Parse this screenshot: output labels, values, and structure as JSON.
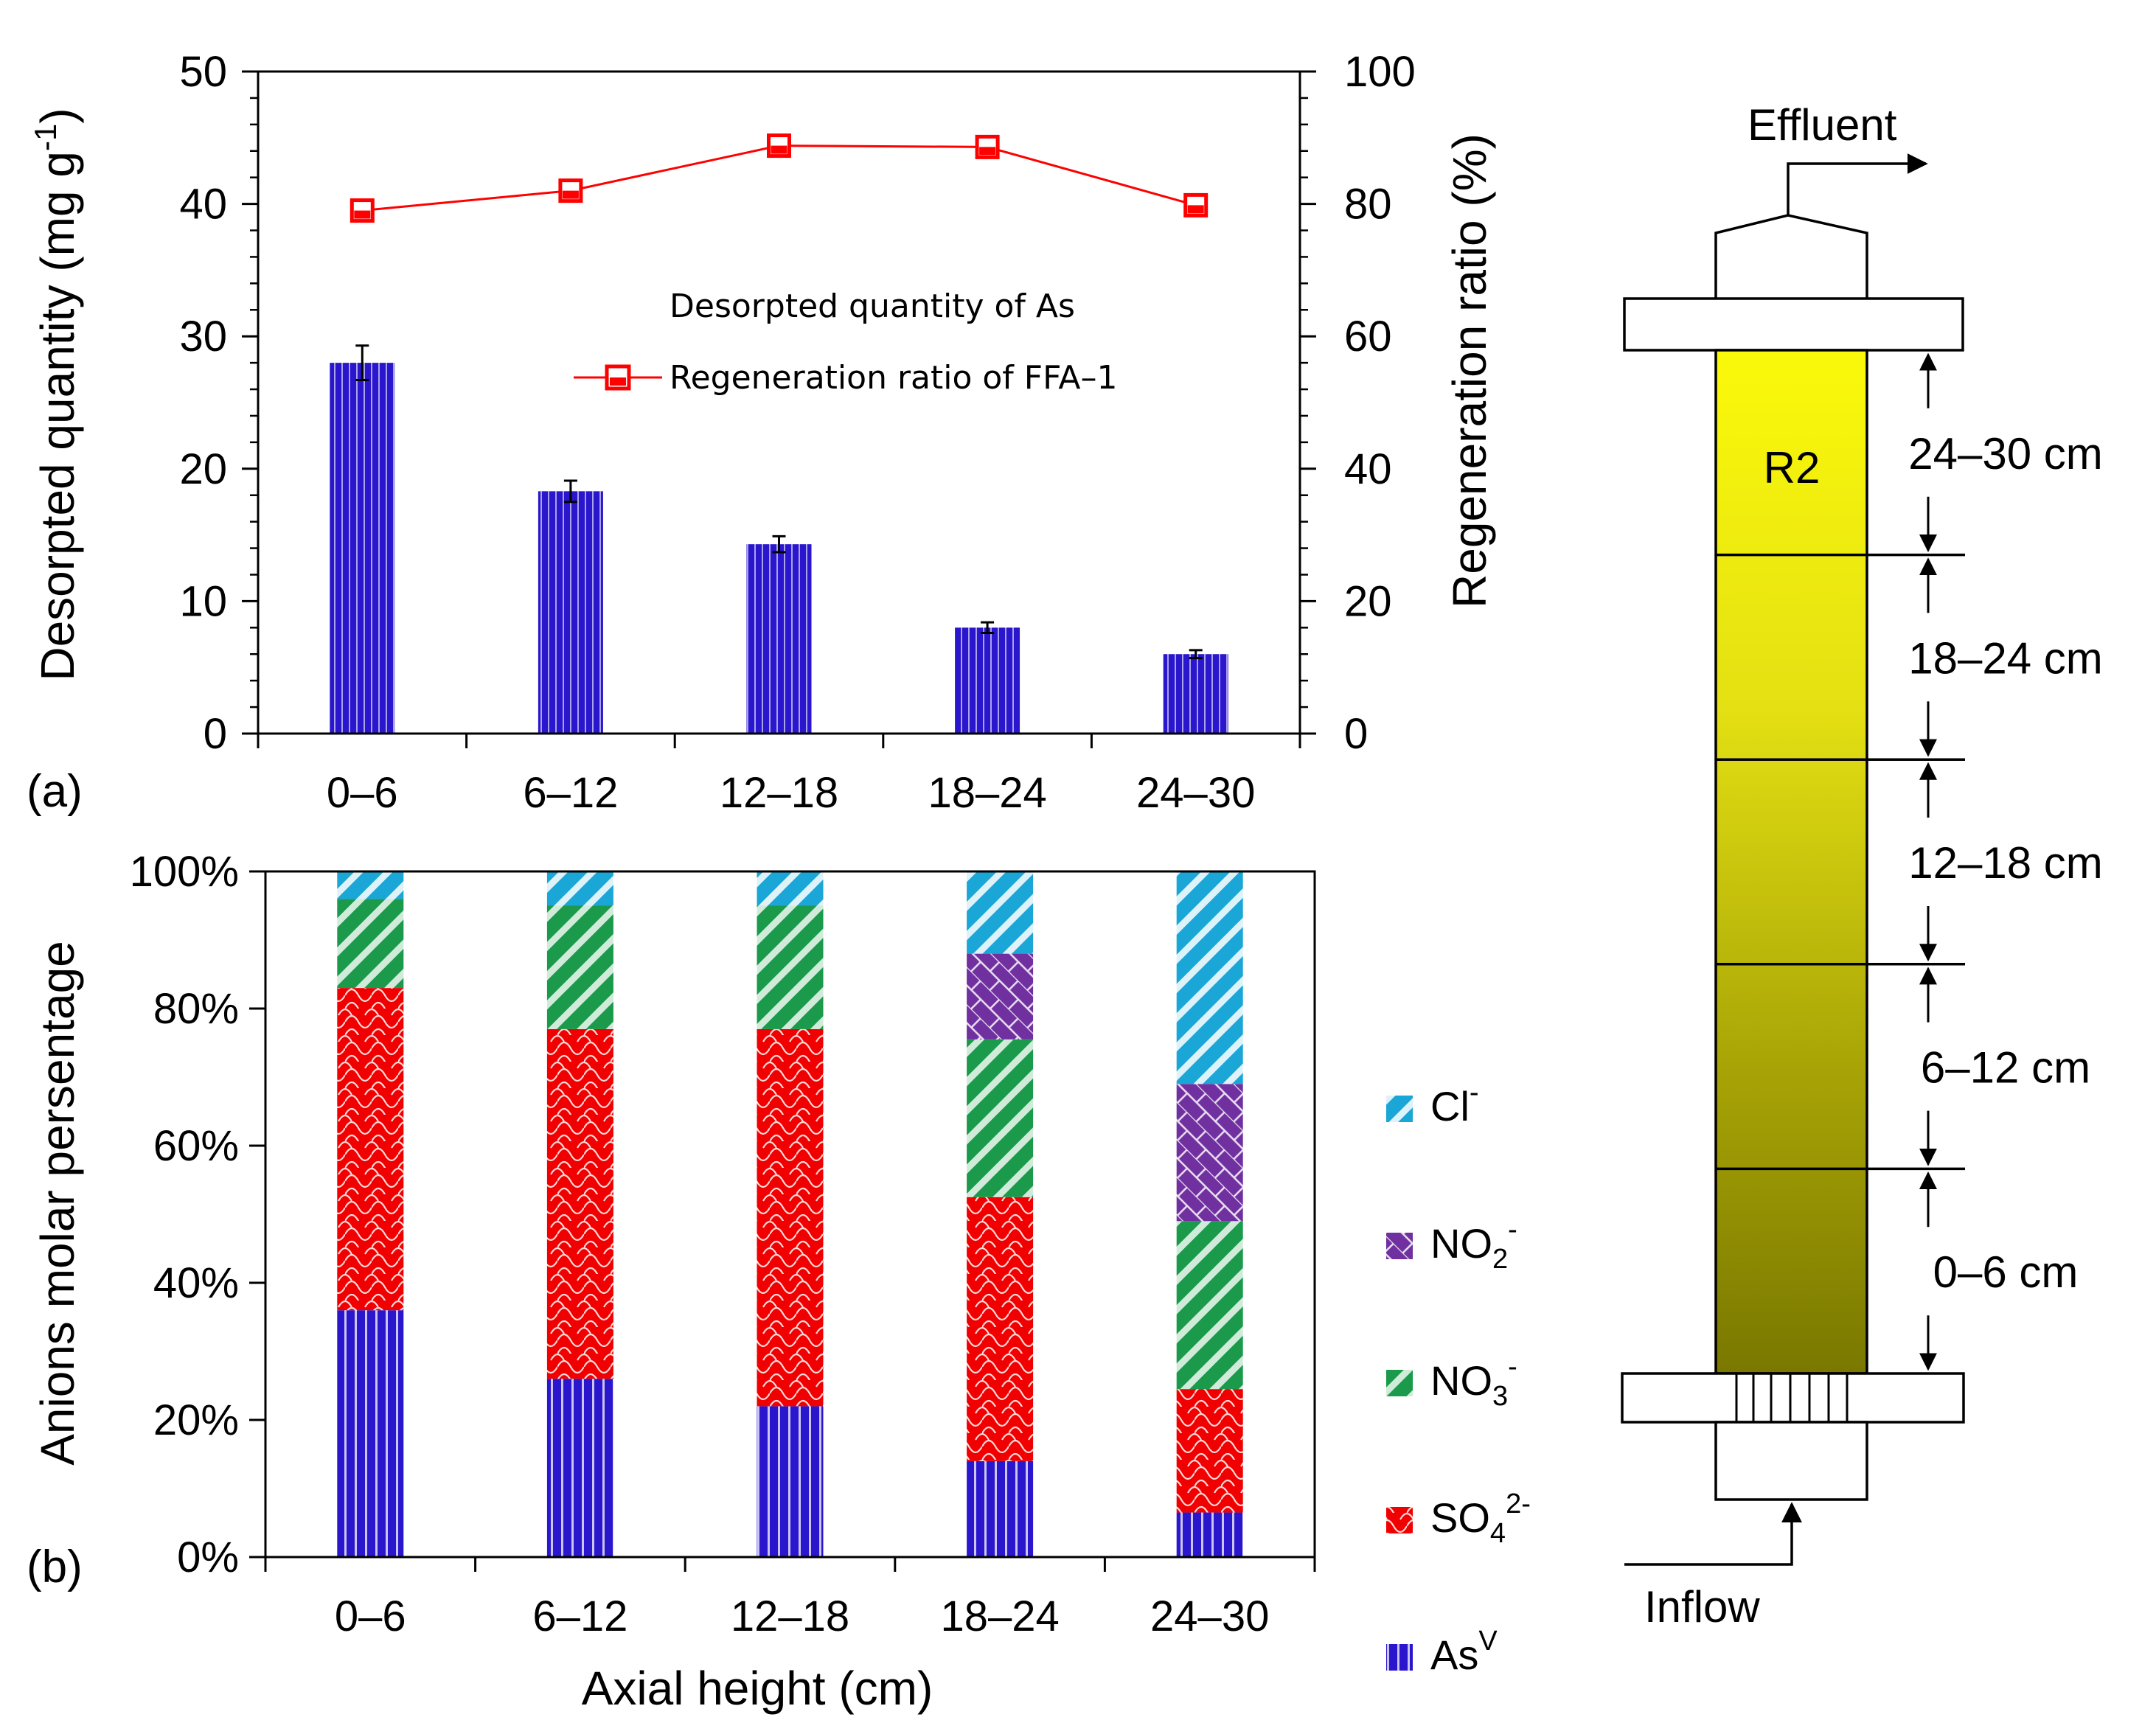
{
  "chart_data": [
    {
      "id": "a",
      "type": "bar",
      "panel_label": "(a)",
      "categories": [
        "0–6",
        "6–12",
        "12–18",
        "18–24",
        "24–30"
      ],
      "series": [
        {
          "name": "Desorpted quantity of As",
          "axis": "left",
          "values": [
            28.0,
            18.3,
            14.3,
            8.0,
            6.0
          ],
          "errors": [
            1.3,
            0.8,
            0.6,
            0.4,
            0.3
          ],
          "color": "#2a16cc"
        },
        {
          "name": "Regeneration ratio of FFA–1",
          "axis": "right",
          "type": "line",
          "values": [
            79,
            82,
            88.8,
            88.6,
            79.8
          ],
          "color": "#ff0000"
        }
      ],
      "ylabel": "Desorpted quantity (mg g",
      "ylabel_sup": "-1",
      "ylabel_close": ")",
      "y2label": "Regeneration ratio (%)",
      "ylim": [
        0,
        50
      ],
      "y2lim": [
        0,
        100
      ],
      "yticks": [
        "0",
        "10",
        "20",
        "30",
        "40",
        "50"
      ],
      "y2ticks": [
        "0",
        "20",
        "40",
        "60",
        "80",
        "100"
      ]
    },
    {
      "id": "b",
      "type": "bar",
      "stacked": true,
      "panel_label": "(b)",
      "categories": [
        "0–6",
        "6–12",
        "12–18",
        "18–24",
        "24–30"
      ],
      "xlabel": "Axial height (cm)",
      "ylabel": "Anions molar persentage",
      "ylim": [
        0,
        100
      ],
      "yticks": [
        "0%",
        "20%",
        "40%",
        "60%",
        "80%",
        "100%"
      ],
      "series": [
        {
          "name": "As",
          "sup": "V",
          "values": [
            36,
            26,
            22,
            14,
            6.5
          ],
          "color": "#2a16cc",
          "pattern": "vert"
        },
        {
          "name": "SO",
          "sub": "4",
          "sup": "2-",
          "values": [
            47,
            51,
            55,
            38.5,
            18
          ],
          "color": "#f00000",
          "pattern": "scale"
        },
        {
          "name": "NO",
          "sub": "3",
          "sup": "-",
          "values": [
            13,
            18,
            18,
            23,
            24.5
          ],
          "color": "#1a9a4a",
          "pattern": "diag"
        },
        {
          "name": "NO",
          "sub": "2",
          "sup": "-",
          "values": [
            0,
            0,
            0,
            12.5,
            20
          ],
          "color": "#7030a0",
          "pattern": "brick"
        },
        {
          "name": "Cl",
          "sup": "-",
          "values": [
            4,
            5,
            5,
            12,
            31
          ],
          "color": "#1aa6d6",
          "pattern": "diag2"
        }
      ]
    }
  ],
  "diagram": {
    "effluent": "Effluent",
    "inflow": "Inflow",
    "bed_label": "R2",
    "sections": [
      "24–30 cm",
      "18–24 cm",
      "12–18 cm",
      "6–12 cm",
      "0–6 cm"
    ]
  },
  "colors": {
    "bed_top": "#fbf90a",
    "bed_bottom": "#7a7800",
    "bar_blue": "#2a16cc",
    "line_red": "#ff0000"
  }
}
